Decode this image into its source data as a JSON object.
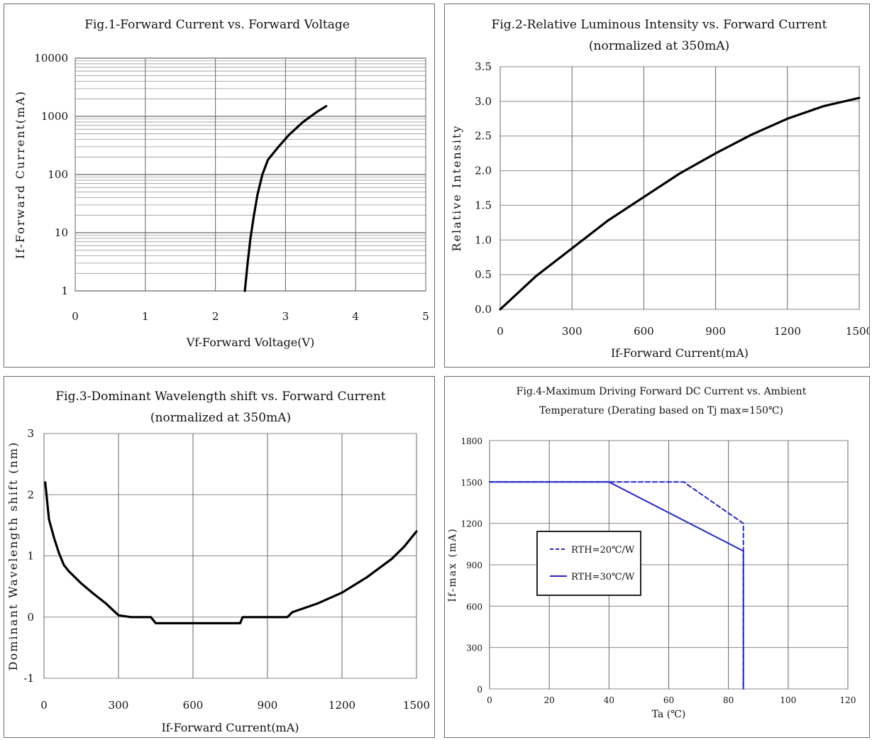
{
  "chart_data": [
    {
      "type": "line",
      "title": "Fig.1-Forward Current vs. Forward Voltage",
      "xlabel": "Vf-Forward Voltage(V)",
      "ylabel": "If-Forward Current(mA)",
      "xlim": [
        0,
        5
      ],
      "ylim": [
        1,
        10000
      ],
      "y_scale": "log",
      "x_ticks": [
        "0",
        "1",
        "2",
        "3",
        "4",
        "5"
      ],
      "y_ticks": [
        "1",
        "10",
        "100",
        "1000",
        "10000"
      ],
      "grid": true,
      "series": [
        {
          "x": [
            2.42,
            2.46,
            2.5,
            2.55,
            2.6,
            2.67,
            2.75,
            2.9,
            3.05,
            3.25,
            3.45,
            3.58
          ],
          "y": [
            1,
            3,
            8,
            20,
            45,
            100,
            180,
            300,
            480,
            800,
            1200,
            1500
          ]
        }
      ]
    },
    {
      "type": "line",
      "title": "Fig.2-Relative Luminous Intensity vs. Forward Current (normalized at 350mA)",
      "xlabel": "If-Forward Current(mA)",
      "ylabel": "Relative Intensity",
      "xlim": [
        0,
        1500
      ],
      "ylim": [
        0,
        3.5
      ],
      "x_ticks": [
        "0",
        "300",
        "600",
        "900",
        "1200",
        "1500"
      ],
      "y_ticks": [
        "0.0",
        "0.5",
        "1.0",
        "1.5",
        "2.0",
        "2.5",
        "3.0",
        "3.5"
      ],
      "grid": true,
      "series": [
        {
          "x": [
            0,
            150,
            300,
            450,
            600,
            750,
            900,
            1050,
            1200,
            1350,
            1500
          ],
          "y": [
            0,
            0.48,
            0.88,
            1.28,
            1.62,
            1.96,
            2.25,
            2.52,
            2.75,
            2.93,
            3.05
          ]
        }
      ]
    },
    {
      "type": "line",
      "title": "Fig.3-Dominant Wavelength shift vs. Forward Current (normalized at 350mA)",
      "xlabel": "If-Forward Current(mA)",
      "ylabel": "Dominant Wavelength shift (nm)",
      "xlim": [
        0,
        1500
      ],
      "ylim": [
        -1,
        3
      ],
      "x_ticks": [
        "0",
        "300",
        "600",
        "900",
        "1200",
        "1500"
      ],
      "y_ticks": [
        "-1",
        "0",
        "1",
        "2",
        "3"
      ],
      "grid": true,
      "series": [
        {
          "x": [
            5,
            20,
            40,
            60,
            80,
            100,
            150,
            200,
            250,
            300,
            350,
            430,
            450,
            600,
            700,
            790,
            800,
            900,
            980,
            1000,
            1100,
            1200,
            1300,
            1400,
            1450,
            1500
          ],
          "y": [
            2.2,
            1.6,
            1.3,
            1.05,
            0.85,
            0.75,
            0.55,
            0.38,
            0.22,
            0.03,
            0.0,
            0.0,
            -0.1,
            -0.1,
            -0.1,
            -0.1,
            0.0,
            0.0,
            0.0,
            0.08,
            0.22,
            0.4,
            0.65,
            0.95,
            1.15,
            1.4
          ]
        }
      ]
    },
    {
      "type": "line",
      "title": "Fig.4-Maximum Driving Forward DC Current vs. Ambient Temperature (Derating based on Tj max=150℃)",
      "xlabel": "Ta (℃)",
      "ylabel": "If-max (mA)",
      "xlim": [
        0,
        120
      ],
      "ylim": [
        0,
        1800
      ],
      "x_ticks": [
        "0",
        "20",
        "40",
        "60",
        "80",
        "100",
        "120"
      ],
      "y_ticks": [
        "0",
        "300",
        "600",
        "900",
        "1200",
        "1500",
        "1800"
      ],
      "grid": true,
      "legend": "center-left",
      "colors": {
        "series": "#2727c9"
      },
      "series": [
        {
          "name": "RTH=20℃/W",
          "style": "dashed",
          "x": [
            0,
            40,
            65,
            85,
            85
          ],
          "y": [
            1500,
            1500,
            1500,
            1200,
            0
          ]
        },
        {
          "name": "RTH=30℃/W",
          "style": "solid",
          "x": [
            0,
            40,
            85,
            85
          ],
          "y": [
            1500,
            1500,
            1000,
            0
          ]
        }
      ]
    }
  ]
}
